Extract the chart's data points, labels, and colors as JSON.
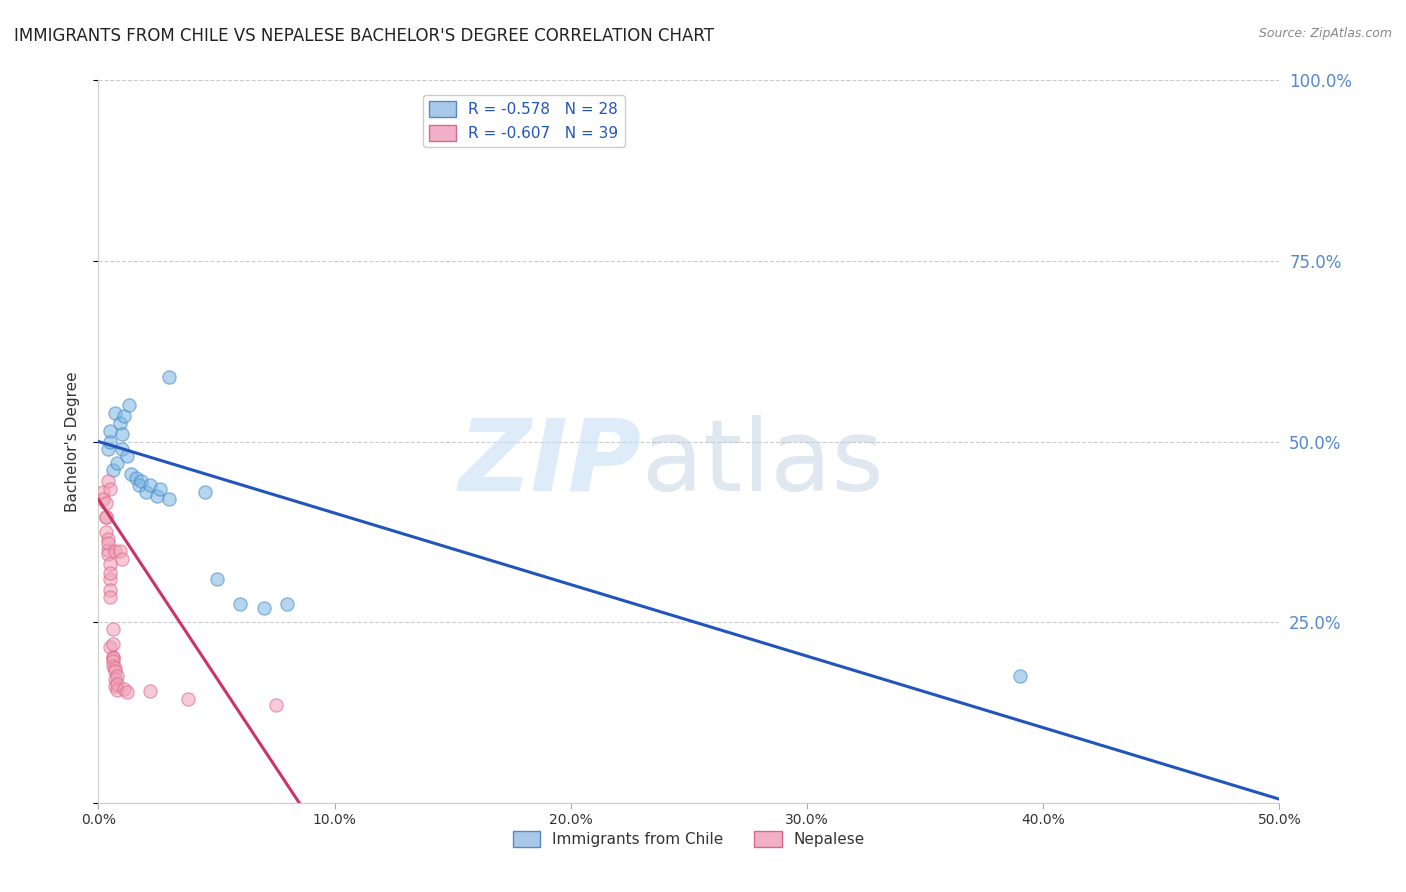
{
  "title": "IMMIGRANTS FROM CHILE VS NEPALESE BACHELOR'S DEGREE CORRELATION CHART",
  "source": "Source: ZipAtlas.com",
  "ylabel": "Bachelor's Degree",
  "xlim": [
    0.0,
    0.5
  ],
  "ylim": [
    0.0,
    1.0
  ],
  "xtick_vals": [
    0.0,
    0.1,
    0.2,
    0.3,
    0.4,
    0.5
  ],
  "xtick_labels": [
    "0.0%",
    "10.0%",
    "20.0%",
    "30.0%",
    "40.0%",
    "50.0%"
  ],
  "ytick_vals": [
    0.0,
    0.25,
    0.5,
    0.75,
    1.0
  ],
  "ytick_labels_right": [
    "",
    "25.0%",
    "50.0%",
    "75.0%",
    "100.0%"
  ],
  "legend_labels": [
    "Immigrants from Chile",
    "Nepalese"
  ],
  "blue_scatter": [
    [
      0.004,
      0.49
    ],
    [
      0.005,
      0.515
    ],
    [
      0.005,
      0.5
    ],
    [
      0.006,
      0.46
    ],
    [
      0.007,
      0.54
    ],
    [
      0.008,
      0.47
    ],
    [
      0.009,
      0.525
    ],
    [
      0.01,
      0.51
    ],
    [
      0.01,
      0.49
    ],
    [
      0.011,
      0.535
    ],
    [
      0.012,
      0.48
    ],
    [
      0.013,
      0.55
    ],
    [
      0.014,
      0.455
    ],
    [
      0.016,
      0.45
    ],
    [
      0.017,
      0.44
    ],
    [
      0.018,
      0.445
    ],
    [
      0.02,
      0.43
    ],
    [
      0.022,
      0.44
    ],
    [
      0.025,
      0.425
    ],
    [
      0.026,
      0.435
    ],
    [
      0.03,
      0.59
    ],
    [
      0.03,
      0.42
    ],
    [
      0.045,
      0.43
    ],
    [
      0.05,
      0.31
    ],
    [
      0.06,
      0.275
    ],
    [
      0.07,
      0.27
    ],
    [
      0.08,
      0.275
    ],
    [
      0.39,
      0.175
    ]
  ],
  "pink_scatter": [
    [
      0.002,
      0.43
    ],
    [
      0.002,
      0.42
    ],
    [
      0.003,
      0.395
    ],
    [
      0.003,
      0.415
    ],
    [
      0.003,
      0.375
    ],
    [
      0.003,
      0.395
    ],
    [
      0.004,
      0.35
    ],
    [
      0.004,
      0.365
    ],
    [
      0.004,
      0.445
    ],
    [
      0.004,
      0.345
    ],
    [
      0.004,
      0.36
    ],
    [
      0.005,
      0.33
    ],
    [
      0.005,
      0.31
    ],
    [
      0.005,
      0.435
    ],
    [
      0.005,
      0.295
    ],
    [
      0.005,
      0.318
    ],
    [
      0.005,
      0.285
    ],
    [
      0.005,
      0.215
    ],
    [
      0.006,
      0.24
    ],
    [
      0.006,
      0.202
    ],
    [
      0.006,
      0.22
    ],
    [
      0.006,
      0.2
    ],
    [
      0.006,
      0.196
    ],
    [
      0.006,
      0.19
    ],
    [
      0.007,
      0.348
    ],
    [
      0.007,
      0.186
    ],
    [
      0.007,
      0.182
    ],
    [
      0.007,
      0.172
    ],
    [
      0.007,
      0.162
    ],
    [
      0.008,
      0.175
    ],
    [
      0.008,
      0.156
    ],
    [
      0.008,
      0.164
    ],
    [
      0.009,
      0.348
    ],
    [
      0.01,
      0.338
    ],
    [
      0.011,
      0.158
    ],
    [
      0.012,
      0.154
    ],
    [
      0.022,
      0.155
    ],
    [
      0.038,
      0.143
    ],
    [
      0.075,
      0.135
    ]
  ],
  "blue_line": [
    [
      0.0,
      0.5
    ],
    [
      0.5,
      0.005
    ]
  ],
  "pink_line": [
    [
      0.0,
      0.42
    ],
    [
      0.085,
      0.0
    ]
  ],
  "background_color": "#ffffff",
  "grid_color": "#cccccc",
  "scatter_alpha": 0.55,
  "scatter_size": 90,
  "blue_color": "#7ab5e0",
  "blue_edge": "#4488cc",
  "blue_line_color": "#2255bb",
  "pink_color": "#f0a0b8",
  "pink_edge": "#dd6688",
  "pink_line_color": "#cc3366"
}
